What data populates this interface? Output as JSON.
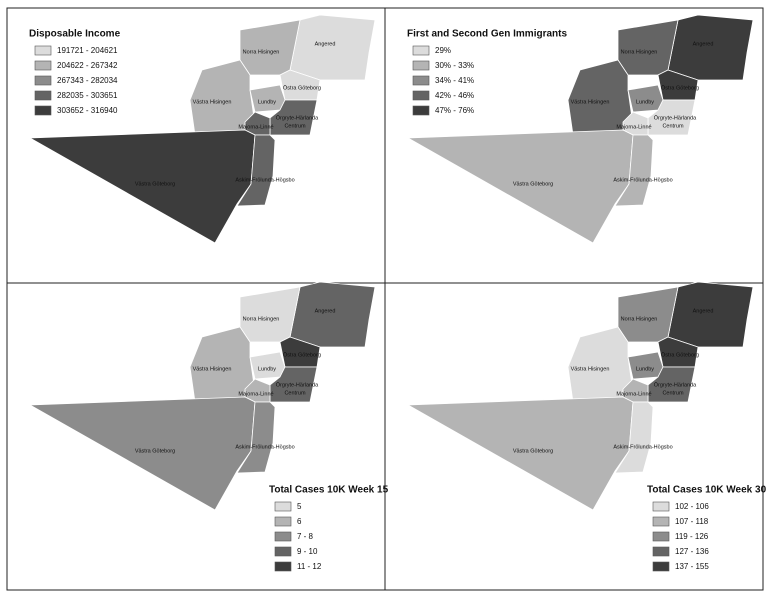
{
  "panels": [
    {
      "legend": {
        "title": "Disposable Income",
        "position": "top-left",
        "items": [
          {
            "label": "191721 - 204621",
            "color": "#dcdcdc"
          },
          {
            "label": "204622 - 267342",
            "color": "#b4b4b4"
          },
          {
            "label": "267343 - 282034",
            "color": "#8c8c8c"
          },
          {
            "label": "282035 - 303651",
            "color": "#646464"
          },
          {
            "label": "303652 - 316940",
            "color": "#3c3c3c"
          }
        ]
      },
      "districts": [
        {
          "name": "Angered",
          "fill": "#dcdcdc"
        },
        {
          "name": "Norra Hisingen",
          "fill": "#b4b4b4"
        },
        {
          "name": "Västra Hisingen",
          "fill": "#b4b4b4"
        },
        {
          "name": "Östra Göteborg",
          "fill": "#dcdcdc"
        },
        {
          "name": "Lundby",
          "fill": "#b4b4b4"
        },
        {
          "name": "Örgryte-Härlanda",
          "fill": "#646464"
        },
        {
          "name": "Centrum",
          "fill": "#646464"
        },
        {
          "name": "Majorna-Linné",
          "fill": "#646464"
        },
        {
          "name": "Västra Göteborg",
          "fill": "#3c3c3c"
        },
        {
          "name": "Askim-Frölunda-Högsbo",
          "fill": "#646464"
        }
      ]
    },
    {
      "legend": {
        "title": "First and Second Gen Immigrants",
        "position": "top-left",
        "items": [
          {
            "label": "29%",
            "color": "#dcdcdc"
          },
          {
            "label": "30% - 33%",
            "color": "#b4b4b4"
          },
          {
            "label": "34% - 41%",
            "color": "#8c8c8c"
          },
          {
            "label": "42% - 46%",
            "color": "#646464"
          },
          {
            "label": "47% - 76%",
            "color": "#3c3c3c"
          }
        ]
      },
      "districts": [
        {
          "name": "Angered",
          "fill": "#3c3c3c"
        },
        {
          "name": "Norra Hisingen",
          "fill": "#646464"
        },
        {
          "name": "Västra Hisingen",
          "fill": "#646464"
        },
        {
          "name": "Östra Göteborg",
          "fill": "#3c3c3c"
        },
        {
          "name": "Lundby",
          "fill": "#8c8c8c"
        },
        {
          "name": "Örgryte-Härlanda",
          "fill": "#dcdcdc"
        },
        {
          "name": "Centrum",
          "fill": "#dcdcdc"
        },
        {
          "name": "Majorna-Linné",
          "fill": "#dcdcdc"
        },
        {
          "name": "Västra Göteborg",
          "fill": "#b4b4b4"
        },
        {
          "name": "Askim-Frölunda-Högsbo",
          "fill": "#b4b4b4"
        }
      ]
    },
    {
      "legend": {
        "title": "Total Cases 10K Week 15",
        "position": "bottom-right",
        "items": [
          {
            "label": "5",
            "color": "#dcdcdc"
          },
          {
            "label": "6",
            "color": "#b4b4b4"
          },
          {
            "label": "7 - 8",
            "color": "#8c8c8c"
          },
          {
            "label": "9 - 10",
            "color": "#646464"
          },
          {
            "label": "11 - 12",
            "color": "#3c3c3c"
          }
        ]
      },
      "districts": [
        {
          "name": "Angered",
          "fill": "#646464"
        },
        {
          "name": "Norra Hisingen",
          "fill": "#dcdcdc"
        },
        {
          "name": "Västra Hisingen",
          "fill": "#b4b4b4"
        },
        {
          "name": "Östra Göteborg",
          "fill": "#3c3c3c"
        },
        {
          "name": "Lundby",
          "fill": "#dcdcdc"
        },
        {
          "name": "Örgryte-Härlanda",
          "fill": "#646464"
        },
        {
          "name": "Centrum",
          "fill": "#646464"
        },
        {
          "name": "Majorna-Linné",
          "fill": "#b4b4b4"
        },
        {
          "name": "Västra Göteborg",
          "fill": "#8c8c8c"
        },
        {
          "name": "Askim-Frölunda-Högsbo",
          "fill": "#8c8c8c"
        }
      ]
    },
    {
      "legend": {
        "title": "Total Cases 10K Week 30",
        "position": "bottom-right",
        "items": [
          {
            "label": "102 - 106",
            "color": "#dcdcdc"
          },
          {
            "label": "107 - 118",
            "color": "#b4b4b4"
          },
          {
            "label": "119 - 126",
            "color": "#8c8c8c"
          },
          {
            "label": "127 - 136",
            "color": "#646464"
          },
          {
            "label": "137 - 155",
            "color": "#3c3c3c"
          }
        ]
      },
      "districts": [
        {
          "name": "Angered",
          "fill": "#3c3c3c"
        },
        {
          "name": "Norra Hisingen",
          "fill": "#8c8c8c"
        },
        {
          "name": "Västra Hisingen",
          "fill": "#dcdcdc"
        },
        {
          "name": "Östra Göteborg",
          "fill": "#3c3c3c"
        },
        {
          "name": "Lundby",
          "fill": "#8c8c8c"
        },
        {
          "name": "Örgryte-Härlanda",
          "fill": "#646464"
        },
        {
          "name": "Centrum",
          "fill": "#646464"
        },
        {
          "name": "Majorna-Linné",
          "fill": "#b4b4b4"
        },
        {
          "name": "Västra Göteborg",
          "fill": "#b4b4b4"
        },
        {
          "name": "Askim-Frölunda-Högsbo",
          "fill": "#dcdcdc"
        }
      ]
    }
  ]
}
